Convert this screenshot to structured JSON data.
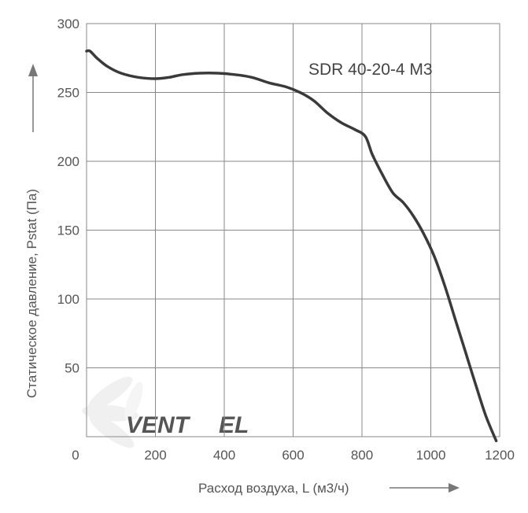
{
  "chart_data": {
    "type": "line",
    "title": "",
    "series_label": "SDR 40-20-4 M3",
    "xlabel": "Расход воздуха, L (м3/ч)",
    "ylabel": "Статическое давление, Pstat (Па)",
    "xlim": [
      0,
      1200
    ],
    "ylim": [
      0,
      300
    ],
    "x_ticks": [
      0,
      200,
      400,
      600,
      800,
      1000,
      1200
    ],
    "y_ticks": [
      50,
      100,
      150,
      200,
      250,
      300
    ],
    "grid": true,
    "series": [
      {
        "name": "SDR 40-20-4 M3",
        "color": "#3a3a3a",
        "x": [
          0,
          10,
          30,
          60,
          100,
          150,
          200,
          240,
          280,
          330,
          380,
          430,
          480,
          530,
          580,
          620,
          660,
          700,
          740,
          780,
          810,
          830,
          860,
          890,
          920,
          950,
          980,
          1010,
          1040,
          1070,
          1100,
          1130,
          1160,
          1190
        ],
        "y": [
          280,
          280,
          275,
          269,
          264,
          261,
          260,
          261,
          263,
          264,
          264,
          263,
          261,
          257,
          254,
          250,
          244,
          235,
          228,
          223,
          218,
          205,
          190,
          177,
          170,
          160,
          147,
          131,
          110,
          86,
          62,
          38,
          15,
          -3
        ]
      }
    ]
  },
  "watermark": {
    "text_dark": "VENT",
    "text_accent": "EL",
    "color_dark": "#d6d6d6",
    "color_accent": "#cfe0f3"
  }
}
